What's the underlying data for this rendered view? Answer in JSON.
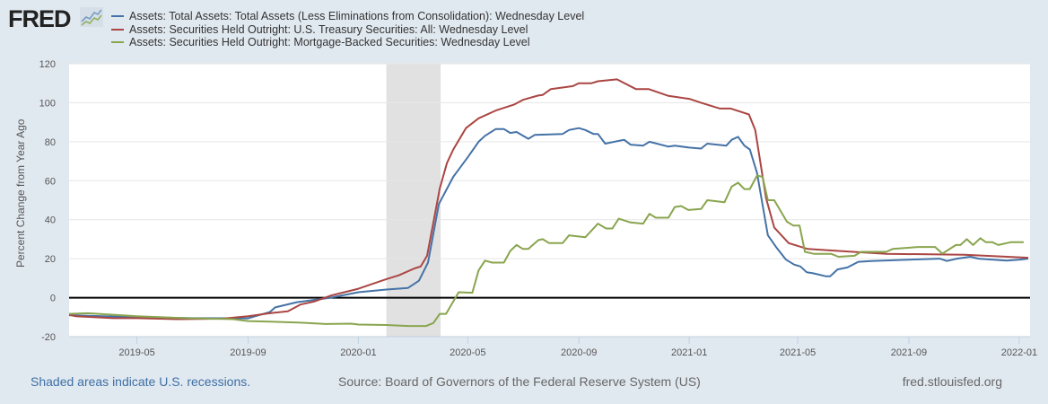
{
  "logo": {
    "text": "FRED"
  },
  "footer": {
    "recession_note": "Shaded areas indicate U.S. recessions.",
    "source": "Source: Board of Governors of the Federal Reserve System (US)",
    "site": "fred.stlouisfed.org"
  },
  "chart_data": {
    "type": "line",
    "title": "",
    "xlabel": "",
    "ylabel": "Percent Change from Year Ago",
    "xlim": [
      "2019-02-15",
      "2022-01-13"
    ],
    "ylim": [
      -20,
      120
    ],
    "yticks": [
      -20,
      0,
      20,
      40,
      60,
      80,
      100,
      120
    ],
    "xticks": [
      "2019-05",
      "2019-09",
      "2020-01",
      "2020-05",
      "2020-09",
      "2021-01",
      "2021-05",
      "2021-09",
      "2022-01"
    ],
    "grid": "horizontal",
    "zero_line": true,
    "legend_position": "top",
    "recession": {
      "start": "2020-02-01",
      "end": "2020-04-01",
      "color": "#e1e1e1"
    },
    "series": [
      {
        "name": "Assets: Total Assets: Total Assets (Less Eliminations from Consolidation): Wednesday Level",
        "color": "#4572a7",
        "points": [
          [
            "2019-02-15",
            -9
          ],
          [
            "2019-05-01",
            -10
          ],
          [
            "2019-07-01",
            -10.5
          ],
          [
            "2019-09-01",
            -10.6
          ],
          [
            "2019-09-25",
            -7.4
          ],
          [
            "2019-10-01",
            -5
          ],
          [
            "2019-10-25",
            -2.3
          ],
          [
            "2019-12-01",
            0
          ],
          [
            "2020-01-01",
            2.8
          ],
          [
            "2020-02-01",
            4.2
          ],
          [
            "2020-02-25",
            5
          ],
          [
            "2020-03-08",
            8.7
          ],
          [
            "2020-03-18",
            18
          ],
          [
            "2020-03-30",
            48
          ],
          [
            "2020-04-15",
            62
          ],
          [
            "2020-05-01",
            72
          ],
          [
            "2020-05-13",
            80
          ],
          [
            "2020-05-20",
            83
          ],
          [
            "2020-06-01",
            86.5
          ],
          [
            "2020-06-10",
            86.5
          ],
          [
            "2020-06-17",
            84.5
          ],
          [
            "2020-06-24",
            85
          ],
          [
            "2020-07-07",
            81.5
          ],
          [
            "2020-07-14",
            83.5
          ],
          [
            "2020-08-14",
            84
          ],
          [
            "2020-08-21",
            86
          ],
          [
            "2020-09-01",
            87
          ],
          [
            "2020-09-08",
            86
          ],
          [
            "2020-09-17",
            84
          ],
          [
            "2020-09-22",
            84
          ],
          [
            "2020-09-30",
            79
          ],
          [
            "2020-10-21",
            81
          ],
          [
            "2020-10-28",
            78.5
          ],
          [
            "2020-11-11",
            78
          ],
          [
            "2020-11-18",
            80
          ],
          [
            "2020-12-09",
            77.5
          ],
          [
            "2020-12-16",
            78
          ],
          [
            "2021-01-01",
            77
          ],
          [
            "2021-01-14",
            76.5
          ],
          [
            "2021-01-21",
            79
          ],
          [
            "2021-02-11",
            78
          ],
          [
            "2021-02-17",
            81
          ],
          [
            "2021-02-24",
            82.5
          ],
          [
            "2021-03-03",
            78
          ],
          [
            "2021-03-09",
            76
          ],
          [
            "2021-03-17",
            64
          ],
          [
            "2021-03-29",
            32
          ],
          [
            "2021-04-07",
            26
          ],
          [
            "2021-04-18",
            19.5
          ],
          [
            "2021-04-27",
            17
          ],
          [
            "2021-05-04",
            16
          ],
          [
            "2021-05-11",
            13
          ],
          [
            "2021-05-18",
            12.5
          ],
          [
            "2021-06-01",
            11
          ],
          [
            "2021-06-06",
            11
          ],
          [
            "2021-06-14",
            14.5
          ],
          [
            "2021-06-25",
            15.5
          ],
          [
            "2021-07-07",
            18.4
          ],
          [
            "2021-07-21",
            18.8
          ],
          [
            "2021-09-01",
            19.5
          ],
          [
            "2021-10-05",
            20
          ],
          [
            "2021-10-13",
            18.8
          ],
          [
            "2021-10-24",
            20
          ],
          [
            "2021-11-08",
            21
          ],
          [
            "2021-11-17",
            20
          ],
          [
            "2021-12-18",
            19
          ],
          [
            "2022-01-01",
            19.5
          ],
          [
            "2022-01-11",
            20
          ]
        ]
      },
      {
        "name": "Assets: Securities Held Outright: U.S. Treasury Securities: All: Wednesday Level",
        "color": "#aa4643",
        "points": [
          [
            "2019-02-15",
            -8.8
          ],
          [
            "2019-02-22",
            -9.5
          ],
          [
            "2019-04-05",
            -10.5
          ],
          [
            "2019-05-01",
            -10.5
          ],
          [
            "2019-06-15",
            -11
          ],
          [
            "2019-08-03",
            -10.8
          ],
          [
            "2019-09-01",
            -9.5
          ],
          [
            "2019-09-25",
            -8
          ],
          [
            "2019-10-15",
            -7
          ],
          [
            "2019-10-29",
            -3.5
          ],
          [
            "2019-11-13",
            -2
          ],
          [
            "2019-12-01",
            1
          ],
          [
            "2020-01-01",
            4.6
          ],
          [
            "2020-02-01",
            9.5
          ],
          [
            "2020-02-15",
            11.5
          ],
          [
            "2020-03-03",
            15
          ],
          [
            "2020-03-10",
            16
          ],
          [
            "2020-03-17",
            21.5
          ],
          [
            "2020-03-31",
            56
          ],
          [
            "2020-04-08",
            69
          ],
          [
            "2020-04-15",
            76
          ],
          [
            "2020-04-29",
            87
          ],
          [
            "2020-05-13",
            92
          ],
          [
            "2020-06-01",
            96
          ],
          [
            "2020-06-21",
            99
          ],
          [
            "2020-07-01",
            101.5
          ],
          [
            "2020-07-18",
            103.7
          ],
          [
            "2020-07-23",
            104
          ],
          [
            "2020-08-01",
            107
          ],
          [
            "2020-08-25",
            108.5
          ],
          [
            "2020-09-01",
            110
          ],
          [
            "2020-09-15",
            110
          ],
          [
            "2020-09-22",
            111
          ],
          [
            "2020-10-13",
            112
          ],
          [
            "2020-11-03",
            107
          ],
          [
            "2020-11-17",
            107
          ],
          [
            "2020-12-09",
            103.5
          ],
          [
            "2021-01-01",
            102
          ],
          [
            "2021-01-14",
            100
          ],
          [
            "2021-02-04",
            97
          ],
          [
            "2021-02-16",
            97
          ],
          [
            "2021-03-08",
            94
          ],
          [
            "2021-03-15",
            86
          ],
          [
            "2021-03-27",
            51
          ],
          [
            "2021-04-05",
            36
          ],
          [
            "2021-04-21",
            28
          ],
          [
            "2021-05-12",
            25
          ],
          [
            "2021-06-15",
            24
          ],
          [
            "2021-08-07",
            22.5
          ],
          [
            "2021-11-01",
            22
          ],
          [
            "2022-01-11",
            20.5
          ]
        ]
      },
      {
        "name": "Assets: Securities Held Outright: Mortgage-Backed Securities: Wednesday Level",
        "color": "#89a54e",
        "points": [
          [
            "2019-02-15",
            -8.3
          ],
          [
            "2019-03-08",
            -8
          ],
          [
            "2019-05-01",
            -9.5
          ],
          [
            "2019-06-23",
            -10.5
          ],
          [
            "2019-08-15",
            -11
          ],
          [
            "2019-09-01",
            -12
          ],
          [
            "2019-09-25",
            -12.3
          ],
          [
            "2019-10-29",
            -12.8
          ],
          [
            "2019-11-26",
            -13.5
          ],
          [
            "2019-12-24",
            -13.3
          ],
          [
            "2020-01-01",
            -13.8
          ],
          [
            "2020-02-01",
            -14
          ],
          [
            "2020-02-25",
            -14.5
          ],
          [
            "2020-03-16",
            -14.5
          ],
          [
            "2020-03-24",
            -13
          ],
          [
            "2020-03-31",
            -8.3
          ],
          [
            "2020-04-07",
            -8.3
          ],
          [
            "2020-04-21",
            2.8
          ],
          [
            "2020-05-06",
            2.5
          ],
          [
            "2020-05-13",
            14
          ],
          [
            "2020-05-20",
            19
          ],
          [
            "2020-05-28",
            18
          ],
          [
            "2020-06-10",
            18
          ],
          [
            "2020-06-17",
            24
          ],
          [
            "2020-06-24",
            27
          ],
          [
            "2020-07-01",
            25
          ],
          [
            "2020-07-07",
            25
          ],
          [
            "2020-07-18",
            29.5
          ],
          [
            "2020-07-23",
            30
          ],
          [
            "2020-07-30",
            28
          ],
          [
            "2020-08-14",
            28
          ],
          [
            "2020-08-21",
            32
          ],
          [
            "2020-09-08",
            31
          ],
          [
            "2020-09-22",
            38
          ],
          [
            "2020-10-01",
            35.5
          ],
          [
            "2020-10-08",
            35.5
          ],
          [
            "2020-10-15",
            40.5
          ],
          [
            "2020-10-28",
            38.6
          ],
          [
            "2020-11-11",
            38
          ],
          [
            "2020-11-18",
            43
          ],
          [
            "2020-11-25",
            41
          ],
          [
            "2020-12-09",
            41
          ],
          [
            "2020-12-16",
            46.5
          ],
          [
            "2020-12-23",
            47
          ],
          [
            "2020-12-31",
            45
          ],
          [
            "2021-01-14",
            45.5
          ],
          [
            "2021-01-21",
            50
          ],
          [
            "2021-02-09",
            49
          ],
          [
            "2021-02-17",
            57
          ],
          [
            "2021-02-24",
            59
          ],
          [
            "2021-03-03",
            55.7
          ],
          [
            "2021-03-09",
            55.7
          ],
          [
            "2021-03-17",
            62.6
          ],
          [
            "2021-03-23",
            62
          ],
          [
            "2021-03-29",
            50
          ],
          [
            "2021-04-05",
            50
          ],
          [
            "2021-04-19",
            39
          ],
          [
            "2021-04-26",
            37
          ],
          [
            "2021-05-03",
            37
          ],
          [
            "2021-05-09",
            23.5
          ],
          [
            "2021-05-19",
            22.5
          ],
          [
            "2021-06-07",
            22.5
          ],
          [
            "2021-06-15",
            21
          ],
          [
            "2021-07-03",
            21.5
          ],
          [
            "2021-07-10",
            23.5
          ],
          [
            "2021-08-07",
            23.5
          ],
          [
            "2021-08-14",
            25
          ],
          [
            "2021-09-11",
            26
          ],
          [
            "2021-09-30",
            26
          ],
          [
            "2021-10-08",
            22.6
          ],
          [
            "2021-10-23",
            27
          ],
          [
            "2021-10-28",
            27
          ],
          [
            "2021-11-04",
            30
          ],
          [
            "2021-11-11",
            27
          ],
          [
            "2021-11-19",
            30.5
          ],
          [
            "2021-11-25",
            28.5
          ],
          [
            "2021-12-02",
            28.5
          ],
          [
            "2021-12-09",
            27
          ],
          [
            "2021-12-23",
            28.5
          ],
          [
            "2022-01-06",
            28.5
          ]
        ]
      }
    ]
  }
}
